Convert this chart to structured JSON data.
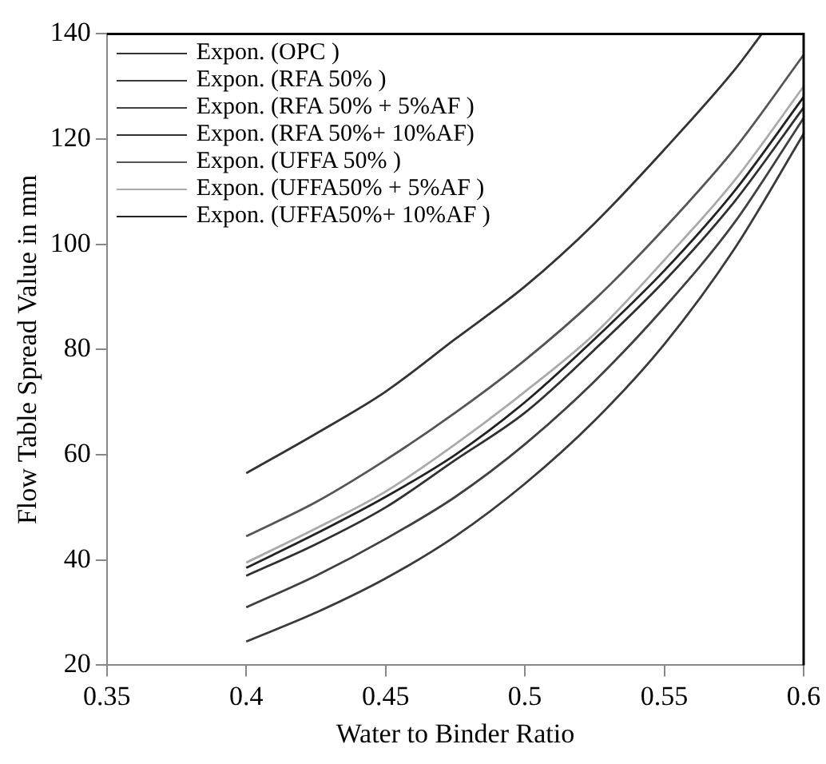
{
  "chart_data": {
    "type": "line",
    "xlabel": "Water to Binder Ratio",
    "ylabel": "Flow Table Spread Value in mm",
    "xlim": [
      0.35,
      0.6
    ],
    "xticks": [
      0.35,
      0.4,
      0.45,
      0.5,
      0.55,
      0.6
    ],
    "ylim": [
      20,
      140
    ],
    "yticks": [
      20,
      40,
      60,
      80,
      100,
      120,
      140
    ],
    "grid": false,
    "legend": "top left",
    "marker": "none",
    "line_style": "solid",
    "series": [
      {
        "name": "Expon. (OPC )",
        "color": "#333333",
        "x": [
          0.4,
          0.425,
          0.45,
          0.475,
          0.5,
          0.525,
          0.55,
          0.575,
          0.585
        ],
        "values": [
          56.5,
          64,
          72,
          82,
          92,
          104,
          118,
          133,
          140
        ]
      },
      {
        "name": "Expon. (RFA 50% )",
        "color": "#3a3a3a",
        "x": [
          0.4,
          0.425,
          0.45,
          0.475,
          0.5,
          0.525,
          0.55,
          0.575,
          0.6
        ],
        "values": [
          24.5,
          30,
          36.5,
          44.5,
          54.5,
          66.5,
          81,
          99,
          121
        ]
      },
      {
        "name": "Expon. (RFA 50% + 5%AF )",
        "color": "#404040",
        "x": [
          0.4,
          0.425,
          0.45,
          0.475,
          0.5,
          0.525,
          0.55,
          0.575,
          0.6
        ],
        "values": [
          31,
          37,
          44,
          52,
          62,
          74,
          88,
          104,
          124
        ]
      },
      {
        "name": "Expon. (RFA 50%+ 10%AF)",
        "color": "#303030",
        "x": [
          0.4,
          0.425,
          0.45,
          0.475,
          0.5,
          0.525,
          0.55,
          0.575,
          0.6
        ],
        "values": [
          37,
          43,
          50,
          59,
          68,
          80,
          93,
          108,
          126
        ]
      },
      {
        "name": "Expon. (UFFA 50% )",
        "color": "#555555",
        "x": [
          0.4,
          0.425,
          0.45,
          0.475,
          0.5,
          0.525,
          0.55,
          0.575,
          0.6
        ],
        "values": [
          44.5,
          51,
          59,
          68,
          78,
          89.5,
          103,
          118,
          136
        ]
      },
      {
        "name": "Expon. (UFFA50% + 5%AF )",
        "color": "#aaaaaa",
        "x": [
          0.4,
          0.425,
          0.45,
          0.475,
          0.5,
          0.525,
          0.55,
          0.575,
          0.6
        ],
        "values": [
          39.5,
          46,
          53,
          62,
          72,
          83,
          97,
          112,
          130
        ]
      },
      {
        "name": "Expon. (UFFA50%+ 10%AF )",
        "color": "#222222",
        "x": [
          0.4,
          0.425,
          0.45,
          0.475,
          0.5,
          0.525,
          0.55,
          0.575,
          0.6
        ],
        "values": [
          38.5,
          45,
          52,
          60,
          70,
          82,
          95,
          110,
          128
        ]
      }
    ]
  }
}
